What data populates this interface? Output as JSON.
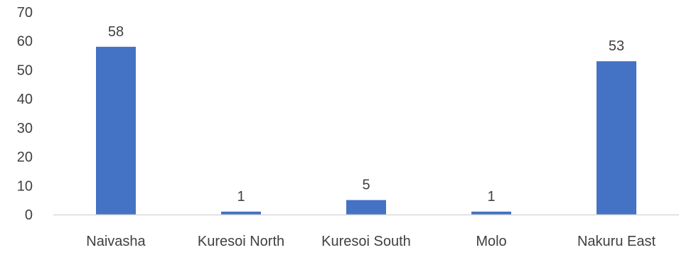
{
  "chart_data": {
    "type": "bar",
    "title": "",
    "xlabel": "",
    "ylabel": "",
    "categories": [
      "Naivasha",
      "Kuresoi North",
      "Kuresoi South",
      "Molo",
      "Nakuru East"
    ],
    "values": [
      58,
      1,
      5,
      1,
      53
    ],
    "data_labels": [
      "58",
      "1",
      "5",
      "1",
      "53"
    ],
    "ylim": [
      0,
      70
    ],
    "yticks": [
      0,
      10,
      20,
      30,
      40,
      50,
      60,
      70
    ],
    "ytick_labels": [
      "0",
      "10",
      "20",
      "30",
      "40",
      "50",
      "60",
      "70"
    ],
    "grid": false,
    "legend": "none",
    "bar_color": "#4472C4",
    "axis_color": "#D9D9D9"
  }
}
